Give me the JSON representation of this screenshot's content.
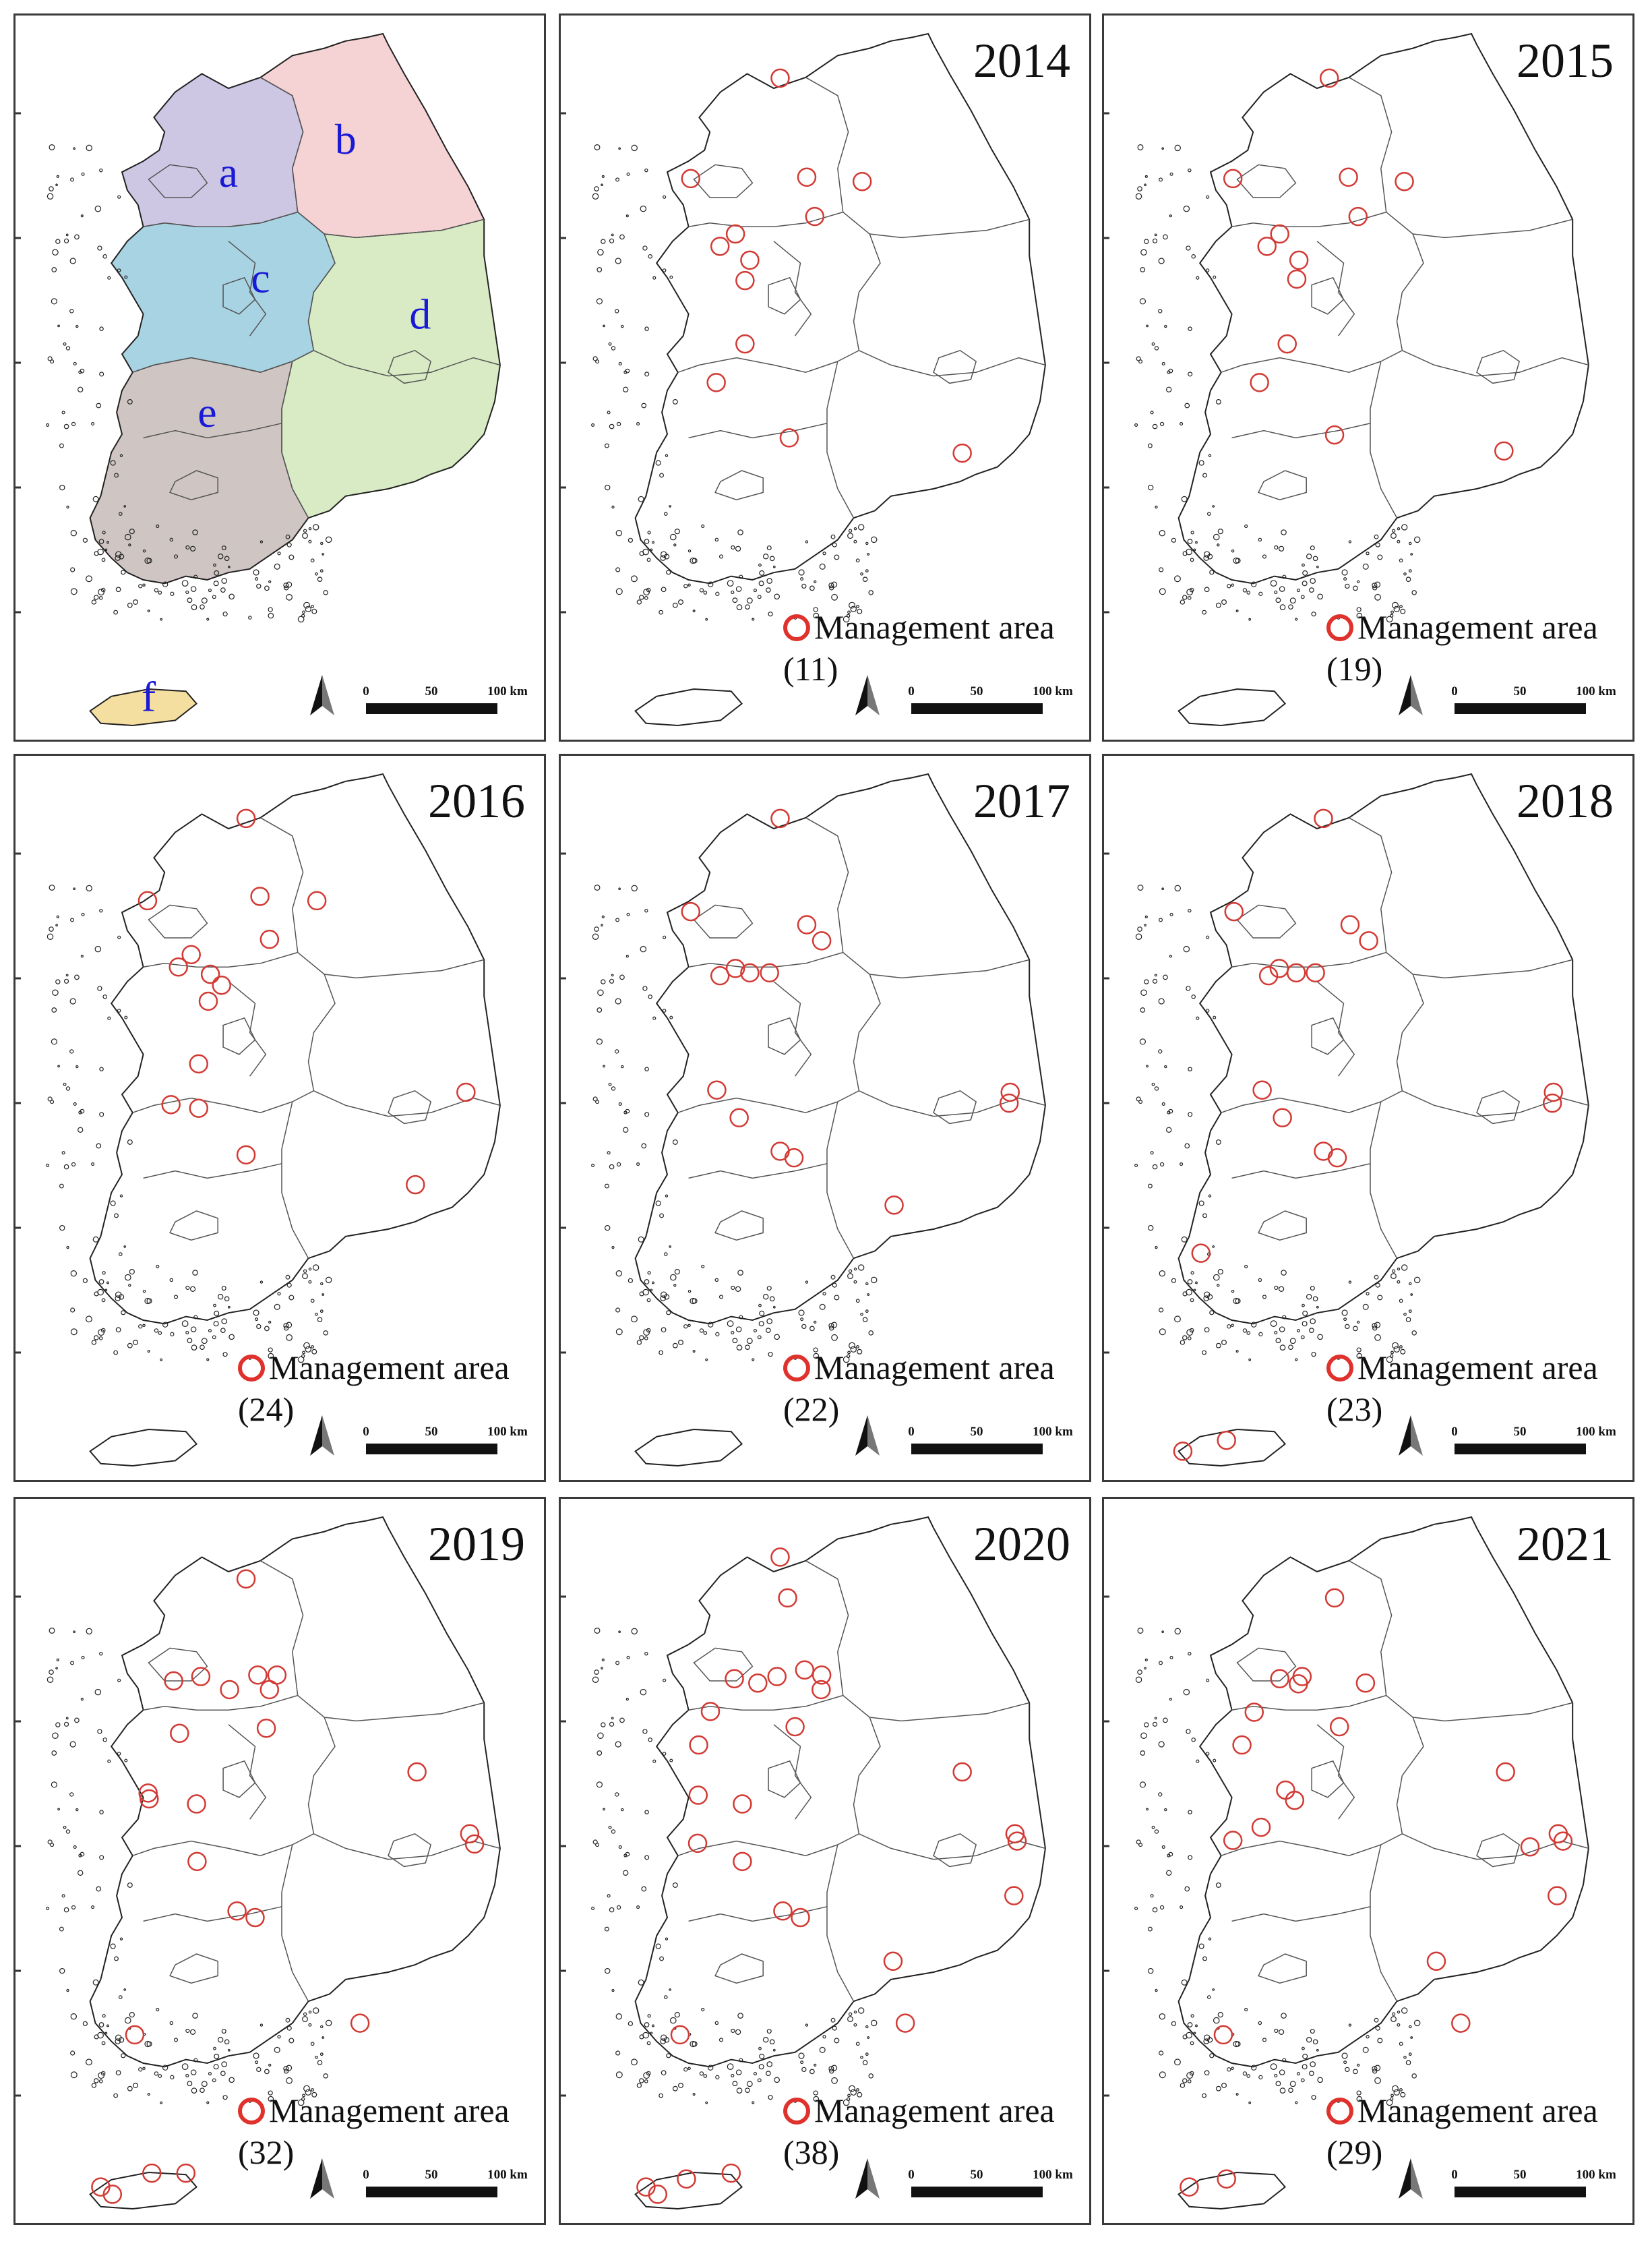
{
  "colors": {
    "marker": "#d23a34",
    "region_a": "#cdc7e4",
    "region_b": "#f5d2d3",
    "region_c": "#a8d3e2",
    "region_d": "#d8ebc4",
    "region_e": "#cfc6c4",
    "region_f": "#f5dfa0",
    "region_label": "#1a1ad6"
  },
  "region_labels": [
    "a",
    "b",
    "c",
    "d",
    "e",
    "f"
  ],
  "scale_bar": {
    "ticks": [
      "0",
      "50",
      "100 km"
    ]
  },
  "north_arrow_icon": "north-arrow-icon",
  "panels": [
    {
      "year": "",
      "legend": "",
      "sites": []
    },
    {
      "year": "2014",
      "legend": "Management area (11)",
      "sites": [
        [
          0.412,
          0.086
        ],
        [
          0.244,
          0.224
        ],
        [
          0.462,
          0.222
        ],
        [
          0.566,
          0.228
        ],
        [
          0.477,
          0.276
        ],
        [
          0.328,
          0.3
        ],
        [
          0.299,
          0.317
        ],
        [
          0.355,
          0.336
        ],
        [
          0.346,
          0.364
        ],
        [
          0.346,
          0.451
        ],
        [
          0.292,
          0.504
        ],
        [
          0.429,
          0.58
        ],
        [
          0.754,
          0.601
        ]
      ]
    },
    {
      "year": "2015",
      "legend": "Management area (19)",
      "sites": [
        [
          0.423,
          0.086
        ],
        [
          0.242,
          0.224
        ],
        [
          0.459,
          0.222
        ],
        [
          0.564,
          0.228
        ],
        [
          0.477,
          0.276
        ],
        [
          0.33,
          0.3
        ],
        [
          0.306,
          0.317
        ],
        [
          0.366,
          0.336
        ],
        [
          0.362,
          0.362
        ],
        [
          0.344,
          0.451
        ],
        [
          0.292,
          0.504
        ],
        [
          0.433,
          0.576
        ],
        [
          0.751,
          0.598
        ]
      ]
    },
    {
      "year": "2016",
      "legend": "Management area (24)",
      "sites": [
        [
          0.433,
          0.086
        ],
        [
          0.248,
          0.199
        ],
        [
          0.459,
          0.193
        ],
        [
          0.566,
          0.199
        ],
        [
          0.477,
          0.252
        ],
        [
          0.33,
          0.273
        ],
        [
          0.306,
          0.29
        ],
        [
          0.366,
          0.3
        ],
        [
          0.387,
          0.315
        ],
        [
          0.362,
          0.337
        ],
        [
          0.344,
          0.423
        ],
        [
          0.292,
          0.479
        ],
        [
          0.344,
          0.484
        ],
        [
          0.846,
          0.462
        ],
        [
          0.433,
          0.548
        ],
        [
          0.751,
          0.589
        ]
      ]
    },
    {
      "year": "2017",
      "legend": "Management area (22)",
      "sites": [
        [
          0.412,
          0.086
        ],
        [
          0.244,
          0.214
        ],
        [
          0.462,
          0.232
        ],
        [
          0.49,
          0.254
        ],
        [
          0.328,
          0.292
        ],
        [
          0.299,
          0.302
        ],
        [
          0.355,
          0.298
        ],
        [
          0.392,
          0.298
        ],
        [
          0.293,
          0.459
        ],
        [
          0.335,
          0.497
        ],
        [
          0.844,
          0.462
        ],
        [
          0.842,
          0.477
        ],
        [
          0.412,
          0.543
        ],
        [
          0.438,
          0.552
        ],
        [
          0.626,
          0.617
        ]
      ]
    },
    {
      "year": "2018",
      "legend": "Management area (23)",
      "sites": [
        [
          0.412,
          0.086
        ],
        [
          0.244,
          0.214
        ],
        [
          0.462,
          0.232
        ],
        [
          0.497,
          0.254
        ],
        [
          0.329,
          0.292
        ],
        [
          0.309,
          0.302
        ],
        [
          0.361,
          0.298
        ],
        [
          0.397,
          0.298
        ],
        [
          0.297,
          0.459
        ],
        [
          0.335,
          0.497
        ],
        [
          0.844,
          0.462
        ],
        [
          0.842,
          0.477
        ],
        [
          0.412,
          0.543
        ],
        [
          0.438,
          0.552
        ],
        [
          0.182,
          0.683
        ],
        [
          0.148,
          0.955
        ],
        [
          0.23,
          0.94
        ]
      ]
    },
    {
      "year": "2019",
      "legend": "Management area (32)",
      "sites": [
        [
          0.433,
          0.11
        ],
        [
          0.297,
          0.25
        ],
        [
          0.348,
          0.244
        ],
        [
          0.402,
          0.262
        ],
        [
          0.455,
          0.242
        ],
        [
          0.491,
          0.242
        ],
        [
          0.477,
          0.262
        ],
        [
          0.308,
          0.322
        ],
        [
          0.471,
          0.315
        ],
        [
          0.249,
          0.404
        ],
        [
          0.251,
          0.412
        ],
        [
          0.34,
          0.419
        ],
        [
          0.754,
          0.375
        ],
        [
          0.853,
          0.46
        ],
        [
          0.862,
          0.474
        ],
        [
          0.341,
          0.498
        ],
        [
          0.416,
          0.566
        ],
        [
          0.45,
          0.575
        ],
        [
          0.224,
          0.736
        ],
        [
          0.647,
          0.72
        ],
        [
          0.16,
          0.945
        ],
        [
          0.182,
          0.955
        ],
        [
          0.256,
          0.926
        ],
        [
          0.32,
          0.926
        ]
      ]
    },
    {
      "year": "2020",
      "legend": "Management area (38)",
      "sites": [
        [
          0.412,
          0.08
        ],
        [
          0.426,
          0.136
        ],
        [
          0.326,
          0.247
        ],
        [
          0.37,
          0.253
        ],
        [
          0.406,
          0.244
        ],
        [
          0.458,
          0.235
        ],
        [
          0.49,
          0.242
        ],
        [
          0.489,
          0.262
        ],
        [
          0.281,
          0.292
        ],
        [
          0.44,
          0.313
        ],
        [
          0.259,
          0.338
        ],
        [
          0.258,
          0.407
        ],
        [
          0.341,
          0.419
        ],
        [
          0.754,
          0.375
        ],
        [
          0.853,
          0.46
        ],
        [
          0.857,
          0.47
        ],
        [
          0.257,
          0.473
        ],
        [
          0.341,
          0.498
        ],
        [
          0.417,
          0.566
        ],
        [
          0.45,
          0.575
        ],
        [
          0.851,
          0.545
        ],
        [
          0.624,
          0.635
        ],
        [
          0.224,
          0.736
        ],
        [
          0.647,
          0.72
        ],
        [
          0.16,
          0.945
        ],
        [
          0.182,
          0.955
        ],
        [
          0.236,
          0.934
        ],
        [
          0.32,
          0.926
        ]
      ]
    },
    {
      "year": "2021",
      "legend": "Management area (29)",
      "sites": [
        [
          0.433,
          0.136
        ],
        [
          0.33,
          0.247
        ],
        [
          0.365,
          0.254
        ],
        [
          0.372,
          0.244
        ],
        [
          0.491,
          0.253
        ],
        [
          0.282,
          0.293
        ],
        [
          0.442,
          0.313
        ],
        [
          0.259,
          0.338
        ],
        [
          0.341,
          0.4
        ],
        [
          0.358,
          0.414
        ],
        [
          0.295,
          0.451
        ],
        [
          0.242,
          0.469
        ],
        [
          0.754,
          0.375
        ],
        [
          0.853,
          0.46
        ],
        [
          0.862,
          0.47
        ],
        [
          0.8,
          0.478
        ],
        [
          0.851,
          0.545
        ],
        [
          0.624,
          0.635
        ],
        [
          0.224,
          0.736
        ],
        [
          0.67,
          0.72
        ],
        [
          0.16,
          0.945
        ],
        [
          0.23,
          0.934
        ]
      ]
    }
  ]
}
